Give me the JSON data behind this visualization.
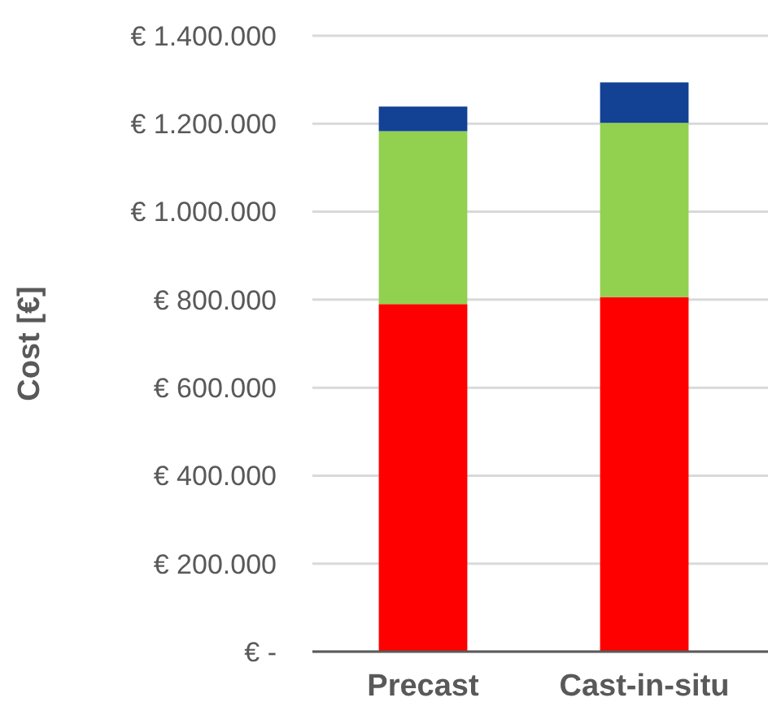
{
  "chart_data": {
    "type": "bar",
    "stacked": true,
    "ylabel": "Cost [€]",
    "categories": [
      "Precast",
      "Cast-in-situ"
    ],
    "series": [
      {
        "color": "#ff0000",
        "values": [
          790000,
          806000
        ]
      },
      {
        "color": "#92d050",
        "values": [
          393000,
          396000
        ]
      },
      {
        "color": "#134294",
        "values": [
          56000,
          92000
        ]
      }
    ],
    "ylim": [
      0,
      1400000
    ],
    "yticks": [
      {
        "value": 0,
        "label": "€ -"
      },
      {
        "value": 200000,
        "label": "€ 200.000"
      },
      {
        "value": 400000,
        "label": "€ 400.000"
      },
      {
        "value": 600000,
        "label": "€ 600.000"
      },
      {
        "value": 800000,
        "label": "€ 800.000"
      },
      {
        "value": 1000000,
        "label": "€ 1.000.000"
      },
      {
        "value": 1200000,
        "label": "€ 1.200.000"
      },
      {
        "value": 1400000,
        "label": "€ 1.400.000"
      }
    ],
    "grid": "y"
  }
}
